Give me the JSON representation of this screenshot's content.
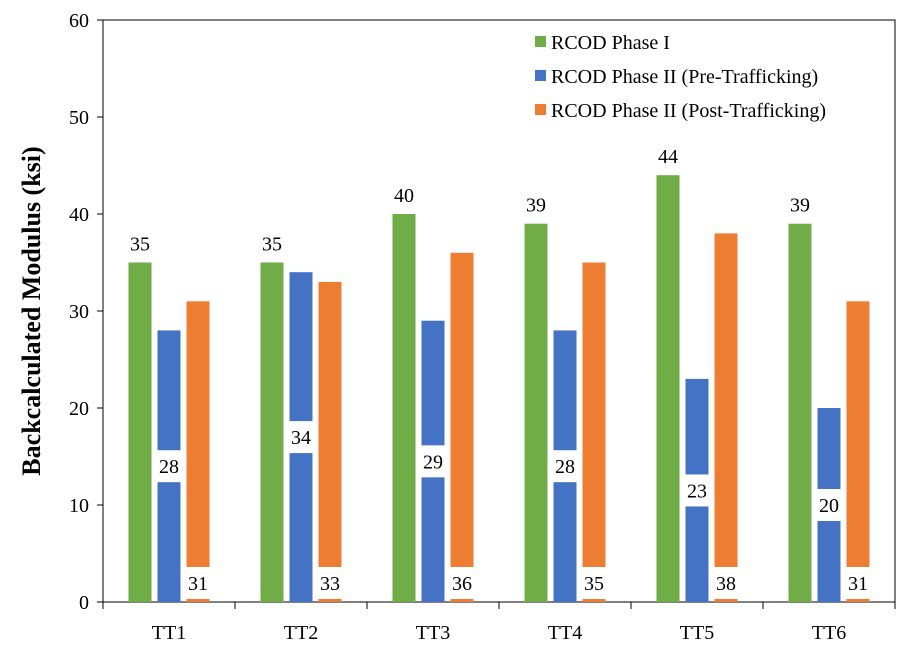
{
  "chart_data": {
    "type": "bar",
    "title": "",
    "xlabel": "",
    "ylabel": "Backcalculated Modulus (ksi)",
    "ylim": [
      0,
      60
    ],
    "yticks": [
      0,
      10,
      20,
      30,
      40,
      50,
      60
    ],
    "grid": false,
    "legend_position": "top-right",
    "categories": [
      "TT1",
      "TT2",
      "TT3",
      "TT4",
      "TT5",
      "TT6"
    ],
    "series": [
      {
        "name": "RCOD Phase I",
        "color": "#70AD47",
        "values": [
          35,
          35,
          40,
          39,
          44,
          39
        ],
        "label_position": "outside-end"
      },
      {
        "name": "RCOD Phase II (Pre-Trafficking)",
        "color": "#4472C4",
        "values": [
          28,
          34,
          29,
          28,
          23,
          20
        ],
        "label_position": "center"
      },
      {
        "name": "RCOD Phase II (Post-Trafficking)",
        "color": "#ED7D31",
        "values": [
          31,
          33,
          36,
          35,
          38,
          31
        ],
        "label_position": "inside-base"
      }
    ]
  }
}
